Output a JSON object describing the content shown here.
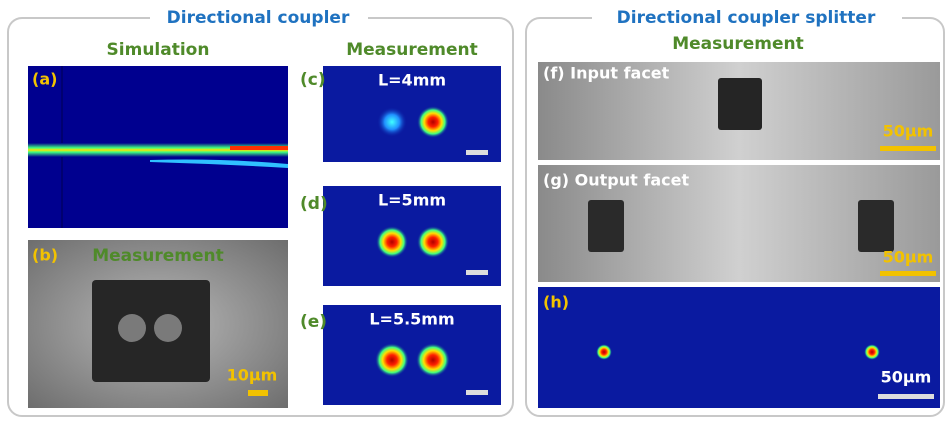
{
  "left_panel": {
    "title": "Directional coupler",
    "simulation_heading": "Simulation",
    "measurement_heading": "Measurement",
    "panel_a": {
      "label": "(a)"
    },
    "panel_b": {
      "label": "(b)",
      "caption": "Measurement",
      "scale": "10µm"
    },
    "panels_cde": [
      {
        "label": "(c)",
        "length": "L=4mm"
      },
      {
        "label": "(d)",
        "length": "L=5mm"
      },
      {
        "label": "(e)",
        "length": "L=5.5mm"
      }
    ]
  },
  "right_panel": {
    "title": "Directional coupler splitter",
    "heading": "Measurement",
    "panel_f": {
      "label": "(f) Input facet",
      "scale": "50µm"
    },
    "panel_g": {
      "label": "(g) Output facet",
      "scale": "50µm"
    },
    "panel_h": {
      "label": "(h)",
      "scale": "50µm"
    }
  }
}
